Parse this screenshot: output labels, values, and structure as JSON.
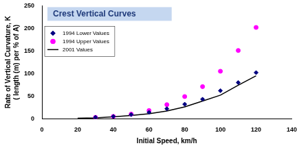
{
  "chart_data": {
    "type": "scatter",
    "title": "Crest Vertical Curves",
    "x_label": "Initial Speed, km/h",
    "y_label": [
      "Rate of Vertical Curvature, K",
      "( length (m) per % of A)"
    ],
    "series": [
      {
        "name": "1994 Lower Values",
        "color": "#000080",
        "marker": "diamond",
        "type": "scatter",
        "x": [
          30,
          40,
          50,
          60,
          70,
          80,
          90,
          100,
          110,
          120
        ],
        "values": [
          3,
          5,
          9,
          14,
          22,
          32,
          43,
          62,
          80,
          102
        ]
      },
      {
        "name": "1994 Upper Values",
        "color": "#ff00ff",
        "marker": "circle",
        "type": "scatter",
        "x": [
          30,
          40,
          50,
          60,
          70,
          80,
          90,
          100,
          110,
          120
        ],
        "values": [
          3,
          5,
          10,
          18,
          31,
          49,
          71,
          105,
          151,
          202
        ]
      },
      {
        "name": "2001 Values",
        "color": "#000000",
        "type": "line",
        "line_style": "solid",
        "x": [
          20,
          30,
          40,
          50,
          60,
          70,
          80,
          90,
          100,
          110,
          120
        ],
        "values": [
          1,
          2,
          4,
          7,
          11,
          17,
          26,
          39,
          52,
          74,
          95
        ]
      }
    ],
    "xlim": [
      0,
      140
    ],
    "xticks": [
      0,
      20,
      40,
      60,
      80,
      100,
      120,
      140
    ],
    "ylim": [
      0,
      250
    ],
    "yticks": [
      0,
      50,
      100,
      150,
      200,
      250
    ],
    "grid": false,
    "legend": "upper left"
  }
}
